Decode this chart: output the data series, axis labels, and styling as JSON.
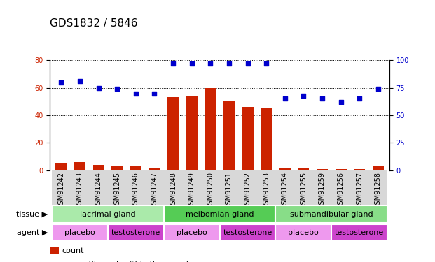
{
  "title": "GDS1832 / 5846",
  "samples": [
    "GSM91242",
    "GSM91243",
    "GSM91244",
    "GSM91245",
    "GSM91246",
    "GSM91247",
    "GSM91248",
    "GSM91249",
    "GSM91250",
    "GSM91251",
    "GSM91252",
    "GSM91253",
    "GSM91254",
    "GSM91255",
    "GSM91259",
    "GSM91256",
    "GSM91257",
    "GSM91258"
  ],
  "count": [
    5,
    6,
    4,
    3,
    3,
    2,
    53,
    54,
    60,
    50,
    46,
    45,
    2,
    2,
    1,
    1,
    1,
    3
  ],
  "percentile": [
    80,
    81,
    75,
    74,
    70,
    70,
    97,
    97,
    97,
    97,
    97,
    97,
    65,
    68,
    65,
    62,
    65,
    74
  ],
  "ylim_left": [
    0,
    80
  ],
  "ylim_right": [
    0,
    100
  ],
  "yticks_left": [
    0,
    20,
    40,
    60,
    80
  ],
  "yticks_right": [
    0,
    25,
    50,
    75,
    100
  ],
  "bar_color": "#cc2200",
  "dot_color": "#0000cc",
  "tissue_groups": [
    {
      "label": "lacrimal gland",
      "start": 0,
      "end": 6,
      "color": "#aaeaaa"
    },
    {
      "label": "meibomian gland",
      "start": 6,
      "end": 12,
      "color": "#55cc55"
    },
    {
      "label": "submandibular gland",
      "start": 12,
      "end": 18,
      "color": "#88dd88"
    }
  ],
  "agent_groups": [
    {
      "label": "placebo",
      "start": 0,
      "end": 3,
      "color": "#ee99ee"
    },
    {
      "label": "testosterone",
      "start": 3,
      "end": 6,
      "color": "#cc44cc"
    },
    {
      "label": "placebo",
      "start": 6,
      "end": 9,
      "color": "#ee99ee"
    },
    {
      "label": "testosterone",
      "start": 9,
      "end": 12,
      "color": "#cc44cc"
    },
    {
      "label": "placebo",
      "start": 12,
      "end": 15,
      "color": "#ee99ee"
    },
    {
      "label": "testosterone",
      "start": 15,
      "end": 18,
      "color": "#cc44cc"
    }
  ],
  "bg_color": "#ffffff",
  "grid_color": "#000000",
  "tick_fontsize": 7,
  "title_fontsize": 11,
  "row_label_fontsize": 8,
  "group_label_fontsize": 8,
  "legend_fontsize": 8
}
